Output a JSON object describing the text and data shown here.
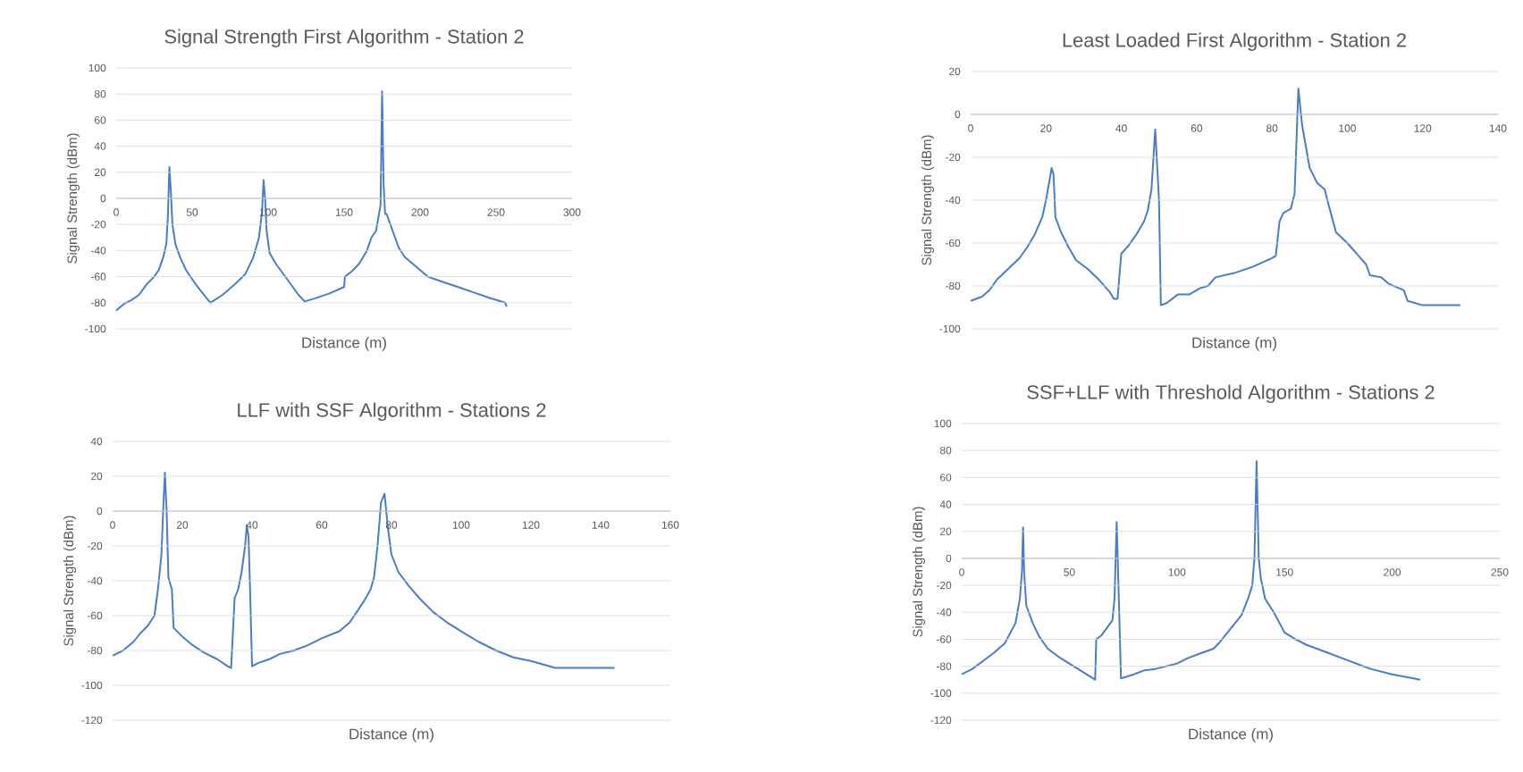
{
  "chart_data": [
    {
      "type": "line",
      "title": "Signal Strength First Algorithm - Station 2",
      "xlabel": "Distance (m)",
      "ylabel": "Signal Strength (dBm)",
      "color": "#4a7cc7",
      "grid": "y",
      "xlim": [
        0,
        300
      ],
      "xticks": [
        0,
        50,
        100,
        150,
        200,
        250,
        300
      ],
      "ylim": [
        -100,
        100
      ],
      "yticks": [
        -100,
        -80,
        -60,
        -40,
        -20,
        0,
        20,
        40,
        60,
        80,
        100
      ],
      "x": [
        0,
        5,
        10,
        15,
        20,
        25,
        28,
        31,
        33,
        34,
        35,
        36,
        37,
        39,
        42,
        46,
        50,
        55,
        62,
        70,
        78,
        85,
        90,
        94,
        96,
        97,
        98,
        99,
        101,
        105,
        110,
        115,
        120,
        124,
        130,
        140,
        150,
        150.5,
        155,
        160,
        165,
        168,
        171,
        174,
        175,
        176,
        177,
        178,
        182,
        186,
        190,
        195,
        200,
        205,
        215,
        225,
        235,
        245,
        256,
        257
      ],
      "values": [
        -86,
        -81,
        -78,
        -74,
        -66,
        -60,
        -55,
        -45,
        -35,
        -15,
        24,
        5,
        -20,
        -35,
        -45,
        -55,
        -62,
        -70,
        -80,
        -74,
        -66,
        -58,
        -46,
        -30,
        -10,
        14,
        0,
        -25,
        -42,
        -50,
        -58,
        -66,
        -74,
        -79,
        -77,
        -73,
        -68,
        -60,
        -56,
        -50,
        -40,
        -30,
        -25,
        -5,
        82,
        10,
        -12,
        -12,
        -25,
        -38,
        -45,
        -50,
        -55,
        -60,
        -64,
        -68,
        -72,
        -76,
        -80,
        -83
      ]
    },
    {
      "type": "line",
      "title": "Least Loaded First Algorithm - Station 2",
      "xlabel": "Distance (m)",
      "ylabel": "Signal Strength (dBm)",
      "color": "#4a7cc7",
      "grid": "y",
      "xlim": [
        0,
        140
      ],
      "xticks": [
        0,
        20,
        40,
        60,
        80,
        100,
        120,
        140
      ],
      "ylim": [
        -100,
        20
      ],
      "yticks": [
        -100,
        -80,
        -60,
        -40,
        -20,
        0,
        20
      ],
      "x": [
        0,
        3,
        5,
        7,
        10,
        13,
        15,
        17,
        19,
        20,
        21,
        21.5,
        22,
        22.5,
        24,
        26,
        28,
        31,
        34,
        37,
        38,
        39,
        39.5,
        40,
        42,
        44,
        46,
        47,
        48,
        49,
        50,
        50.5,
        52,
        55,
        58,
        61,
        63,
        65,
        70,
        75,
        80,
        81,
        82,
        83,
        85,
        86,
        87,
        88,
        89,
        90,
        92,
        94,
        95,
        97,
        100,
        103,
        105,
        106,
        109,
        111,
        115,
        116,
        120,
        130
      ],
      "values": [
        -87,
        -85,
        -82,
        -77,
        -72,
        -67,
        -62,
        -56,
        -48,
        -40,
        -30,
        -25,
        -28,
        -48,
        -55,
        -62,
        -68,
        -72,
        -77,
        -83,
        -86,
        -86,
        -75,
        -65,
        -61,
        -56,
        -50,
        -45,
        -35,
        -7,
        -40,
        -89,
        -88,
        -84,
        -84,
        -81,
        -80,
        -76,
        -74,
        -71,
        -67,
        -66,
        -50,
        -46,
        -44,
        -37,
        12,
        -5,
        -15,
        -25,
        -32,
        -35,
        -42,
        -55,
        -60,
        -66,
        -70,
        -75,
        -76,
        -79,
        -82,
        -87,
        -89,
        -89
      ]
    },
    {
      "type": "line",
      "title": "LLF with SSF Algorithm - Stations 2",
      "xlabel": "Distance (m)",
      "ylabel": "Signal Strength (dBm)",
      "color": "#4a7cc7",
      "grid": "y",
      "xlim": [
        0,
        160
      ],
      "xticks": [
        0,
        20,
        40,
        60,
        80,
        100,
        120,
        140,
        160
      ],
      "ylim": [
        -120,
        40
      ],
      "yticks": [
        -120,
        -100,
        -80,
        -60,
        -40,
        -20,
        0,
        20,
        40
      ],
      "x": [
        0,
        3,
        6,
        8,
        10,
        12,
        13,
        14,
        14.5,
        15,
        15.5,
        16,
        17,
        17.5,
        20,
        23,
        26,
        30,
        33,
        34,
        34.5,
        35,
        36,
        37,
        38,
        38.5,
        39,
        39.5,
        40,
        42,
        45,
        48,
        52,
        56,
        60,
        65,
        68,
        70,
        72,
        74,
        75,
        76,
        77,
        78,
        79,
        80,
        82,
        85,
        88,
        92,
        96,
        100,
        105,
        110,
        115,
        120,
        127,
        135,
        144
      ],
      "values": [
        -83,
        -80,
        -75,
        -70,
        -66,
        -60,
        -45,
        -25,
        0,
        22,
        0,
        -38,
        -45,
        -67,
        -72,
        -77,
        -81,
        -85,
        -89,
        -90,
        -70,
        -50,
        -45,
        -35,
        -20,
        -8,
        -15,
        -50,
        -89,
        -87,
        -85,
        -82,
        -80,
        -77,
        -73,
        -69,
        -64,
        -58,
        -52,
        -45,
        -38,
        -20,
        5,
        10,
        -10,
        -25,
        -35,
        -43,
        -50,
        -58,
        -64,
        -69,
        -75,
        -80,
        -84,
        -86,
        -90,
        -90,
        -90
      ]
    },
    {
      "type": "line",
      "title": "SSF+LLF with Threshold Algorithm - Stations 2",
      "xlabel": "Distance (m)",
      "ylabel": "Signal Strength (dBm)",
      "color": "#4a7cc7",
      "grid": "y",
      "xlim": [
        0,
        250
      ],
      "xticks": [
        0,
        50,
        100,
        150,
        200,
        250
      ],
      "ylim": [
        -120,
        100
      ],
      "yticks": [
        -120,
        -100,
        -80,
        -60,
        -40,
        -20,
        0,
        20,
        40,
        60,
        80,
        100
      ],
      "x": [
        0,
        5,
        10,
        15,
        20,
        25,
        27,
        28,
        28.5,
        29,
        30,
        33,
        36,
        40,
        45,
        50,
        55,
        60,
        62,
        62.5,
        65,
        70,
        71,
        72,
        73,
        74,
        80,
        85,
        90,
        100,
        105,
        110,
        117,
        120,
        125,
        130,
        133,
        135,
        136,
        137,
        138,
        139,
        141,
        145,
        150,
        155,
        160,
        170,
        180,
        190,
        200,
        210,
        213
      ],
      "values": [
        -86,
        -82,
        -76,
        -70,
        -63,
        -48,
        -30,
        -10,
        23,
        -10,
        -35,
        -48,
        -58,
        -67,
        -73,
        -78,
        -83,
        -88,
        -90,
        -60,
        -57,
        -46,
        -30,
        27,
        -30,
        -89,
        -86,
        -83,
        -82,
        -78,
        -74,
        -71,
        -67,
        -62,
        -52,
        -42,
        -30,
        -20,
        0,
        72,
        0,
        -15,
        -30,
        -40,
        -55,
        -60,
        -64,
        -70,
        -76,
        -82,
        -86,
        -89,
        -90
      ]
    }
  ]
}
